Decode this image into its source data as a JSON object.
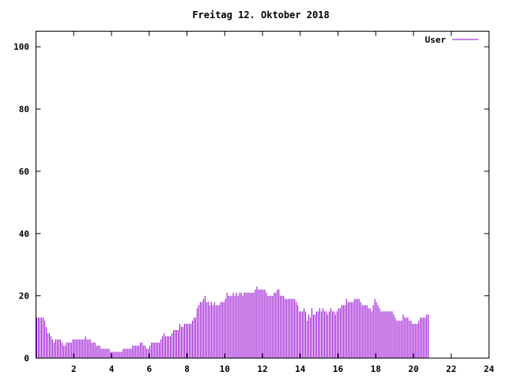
{
  "chart_data": {
    "type": "bar",
    "title": "Freitag 12. Oktober 2018",
    "xlabel": "",
    "ylabel": "",
    "xlim": [
      0,
      24
    ],
    "ylim": [
      0,
      105
    ],
    "x_ticks": [
      2,
      4,
      6,
      8,
      10,
      12,
      14,
      16,
      18,
      20,
      22,
      24
    ],
    "y_ticks": [
      0,
      20,
      40,
      60,
      80,
      100
    ],
    "grid": false,
    "legend": "top-right",
    "series": [
      {
        "name": "User",
        "color": "#9400d3",
        "x_start": 0,
        "x_step": 0.0833,
        "values": [
          13,
          13,
          13,
          13,
          13,
          12,
          10,
          8,
          8,
          7,
          6,
          5,
          6,
          6,
          6,
          6,
          5,
          4,
          4,
          5,
          5,
          5,
          5,
          6,
          6,
          6,
          6,
          6,
          6,
          6,
          6,
          7,
          6,
          6,
          6,
          5,
          5,
          5,
          4,
          4,
          4,
          3,
          3,
          3,
          3,
          3,
          3,
          2,
          2,
          2,
          2,
          2,
          2,
          2,
          2,
          3,
          3,
          3,
          3,
          3,
          3,
          4,
          4,
          4,
          4,
          4,
          5,
          5,
          4,
          4,
          3,
          3,
          4,
          5,
          5,
          5,
          5,
          5,
          5,
          6,
          7,
          8,
          7,
          7,
          7,
          7,
          8,
          9,
          9,
          9,
          9,
          11,
          10,
          10,
          11,
          11,
          11,
          11,
          11,
          12,
          13,
          13,
          16,
          17,
          18,
          18,
          19,
          20,
          18,
          18,
          17,
          18,
          17,
          18,
          17,
          17,
          17,
          18,
          18,
          18,
          19,
          21,
          20,
          20,
          20,
          21,
          20,
          21,
          20,
          21,
          21,
          20,
          21,
          21,
          21,
          21,
          21,
          21,
          21,
          22,
          23,
          22,
          22,
          22,
          22,
          22,
          21,
          20,
          20,
          20,
          20,
          21,
          21,
          22,
          22,
          20,
          20,
          20,
          19,
          19,
          19,
          19,
          19,
          19,
          19,
          18,
          17,
          15,
          15,
          15,
          16,
          15,
          12,
          14,
          13,
          16,
          14,
          14,
          15,
          15,
          16,
          15,
          16,
          15,
          15,
          14,
          15,
          16,
          15,
          15,
          14,
          15,
          16,
          16,
          17,
          17,
          17,
          19,
          18,
          18,
          18,
          18,
          19,
          19,
          19,
          19,
          18,
          17,
          17,
          17,
          17,
          16,
          16,
          15,
          17,
          19,
          18,
          17,
          16,
          15,
          15,
          15,
          15,
          15,
          15,
          15,
          15,
          14,
          13,
          12,
          12,
          12,
          12,
          14,
          13,
          13,
          13,
          12,
          12,
          11,
          11,
          11,
          11,
          12,
          13,
          13,
          13,
          13,
          14,
          14
        ]
      }
    ]
  }
}
